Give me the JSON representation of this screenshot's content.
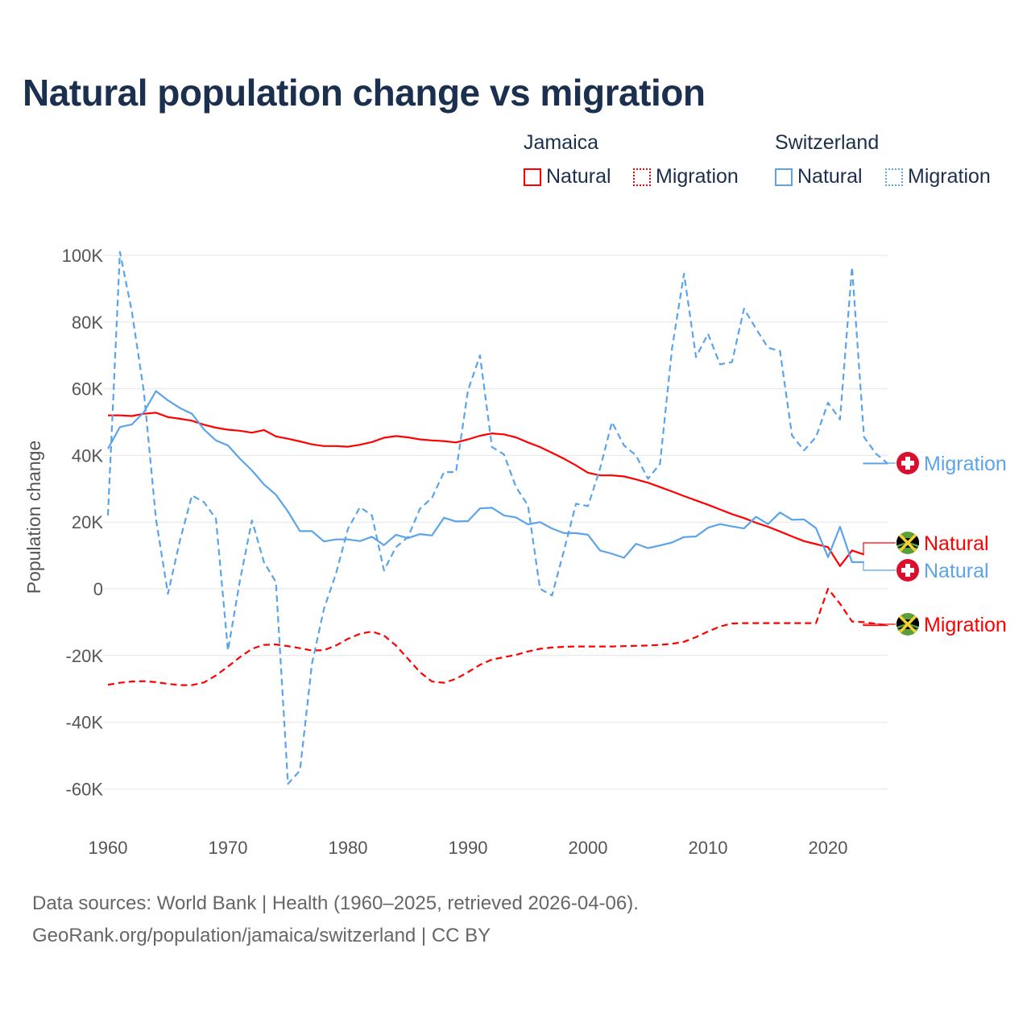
{
  "title": "Natural population change vs migration",
  "legend": {
    "groups": [
      {
        "label": "Jamaica",
        "items": [
          {
            "label": "Natural",
            "style": "solid"
          },
          {
            "label": "Migration",
            "style": "dotted"
          }
        ],
        "color": "#ff0000"
      },
      {
        "label": "Switzerland",
        "items": [
          {
            "label": "Natural",
            "style": "solid"
          },
          {
            "label": "Migration",
            "style": "dotted"
          }
        ],
        "color": "#5ba4ea"
      }
    ]
  },
  "footer": {
    "line1": "Data sources: World Bank | Health (1960–2025, retrieved 2026-04-06).",
    "line2": "GeoRank.org/population/jamaica/switzerland | CC BY"
  },
  "chart_data": {
    "type": "line",
    "title": "Natural population change vs migration",
    "xlabel": "",
    "ylabel": "Population change",
    "xlim": [
      1960,
      2025
    ],
    "ylim": [
      -70000,
      100000
    ],
    "x_ticks": [
      1960,
      1970,
      1980,
      1990,
      2000,
      2010,
      2020
    ],
    "x_tick_labels": [
      "1960",
      "1970",
      "1980",
      "1990",
      "2000",
      "2010",
      "2020"
    ],
    "y_ticks": [
      100000,
      80000,
      60000,
      40000,
      20000,
      0,
      -20000,
      -40000,
      -60000
    ],
    "y_tick_labels": [
      "100K",
      "80K",
      "60K",
      "40K",
      "20K",
      "0",
      "-20K",
      "-40K",
      "-60K"
    ],
    "grid": true,
    "legend_position": "top-right",
    "x_start": 1960,
    "series": [
      {
        "name": "Jamaica Natural",
        "end_label": "Natural",
        "country": "Jamaica",
        "color": "#ff0000",
        "dash": false,
        "values": [
          52000,
          52000,
          51800,
          52500,
          52800,
          51500,
          51000,
          50400,
          49200,
          48300,
          47700,
          47400,
          46800,
          47600,
          45700,
          45000,
          44200,
          43300,
          42800,
          42800,
          42600,
          43200,
          44000,
          45300,
          45800,
          45400,
          44800,
          44500,
          44300,
          43900,
          44800,
          45900,
          46600,
          46300,
          45400,
          43900,
          42500,
          40800,
          39000,
          37000,
          34800,
          34000,
          34000,
          33700,
          32800,
          31800,
          30500,
          29200,
          27800,
          26500,
          25200,
          23800,
          22400,
          21200,
          19800,
          18600,
          17200,
          15700,
          14300,
          13400,
          12500,
          6800,
          11500,
          10300
        ]
      },
      {
        "name": "Jamaica Migration",
        "end_label": "Migration",
        "country": "Jamaica",
        "color": "#ff0000",
        "dash": true,
        "values": [
          -28800,
          -28200,
          -27800,
          -27700,
          -28000,
          -28500,
          -28900,
          -28900,
          -28100,
          -26000,
          -23300,
          -20500,
          -18000,
          -16800,
          -16700,
          -17200,
          -17800,
          -18500,
          -18400,
          -17000,
          -15000,
          -13500,
          -12800,
          -14000,
          -17000,
          -21000,
          -25000,
          -27800,
          -28200,
          -27000,
          -25000,
          -22800,
          -21200,
          -20500,
          -19800,
          -18800,
          -18000,
          -17600,
          -17400,
          -17300,
          -17300,
          -17300,
          -17300,
          -17200,
          -17100,
          -17000,
          -16800,
          -16500,
          -15900,
          -14500,
          -12800,
          -11300,
          -10400,
          -10300,
          -10300,
          -10300,
          -10300,
          -10300,
          -10300,
          -10300,
          0,
          -4500,
          -9800,
          -10000,
          -10500,
          -11000
        ]
      },
      {
        "name": "Switzerland Natural",
        "end_label": "Natural",
        "country": "Switzerland",
        "color": "#5ba4ea",
        "dash": false,
        "values": [
          42000,
          48500,
          49300,
          53000,
          59300,
          56500,
          54200,
          52500,
          47800,
          44500,
          43000,
          39000,
          35500,
          31300,
          28200,
          23200,
          17300,
          17300,
          14200,
          14800,
          14800,
          14300,
          15600,
          13100,
          16200,
          15200,
          16400,
          16000,
          21300,
          20200,
          20300,
          24100,
          24300,
          22000,
          21400,
          19300,
          20000,
          18100,
          16700,
          16700,
          16200,
          11500,
          10500,
          9300,
          13500,
          12200,
          13000,
          13900,
          15500,
          15700,
          18300,
          19400,
          18700,
          18100,
          21600,
          19400,
          22900,
          20700,
          20800,
          18200,
          9500,
          18600,
          8000,
          8000
        ]
      },
      {
        "name": "Switzerland Migration",
        "end_label": "Migration",
        "country": "Switzerland",
        "color": "#5ba4ea",
        "dash": true,
        "values": [
          22000,
          101000,
          83000,
          59000,
          21000,
          -1500,
          14500,
          28000,
          26000,
          21000,
          -18500,
          2500,
          20500,
          8000,
          2000,
          -58500,
          -54500,
          -22500,
          -6000,
          4500,
          18000,
          24500,
          22000,
          5500,
          12500,
          15500,
          24000,
          27300,
          35000,
          35000,
          59500,
          70000,
          42500,
          40300,
          30500,
          25000,
          0,
          -2000,
          11500,
          25500,
          24800,
          36000,
          50000,
          43000,
          40000,
          33000,
          37500,
          72000,
          94500,
          69500,
          76500,
          67300,
          68000,
          84000,
          78000,
          72300,
          71300,
          46000,
          41500,
          45500,
          55800,
          50800,
          96500,
          45500,
          40500,
          37500
        ]
      }
    ]
  }
}
